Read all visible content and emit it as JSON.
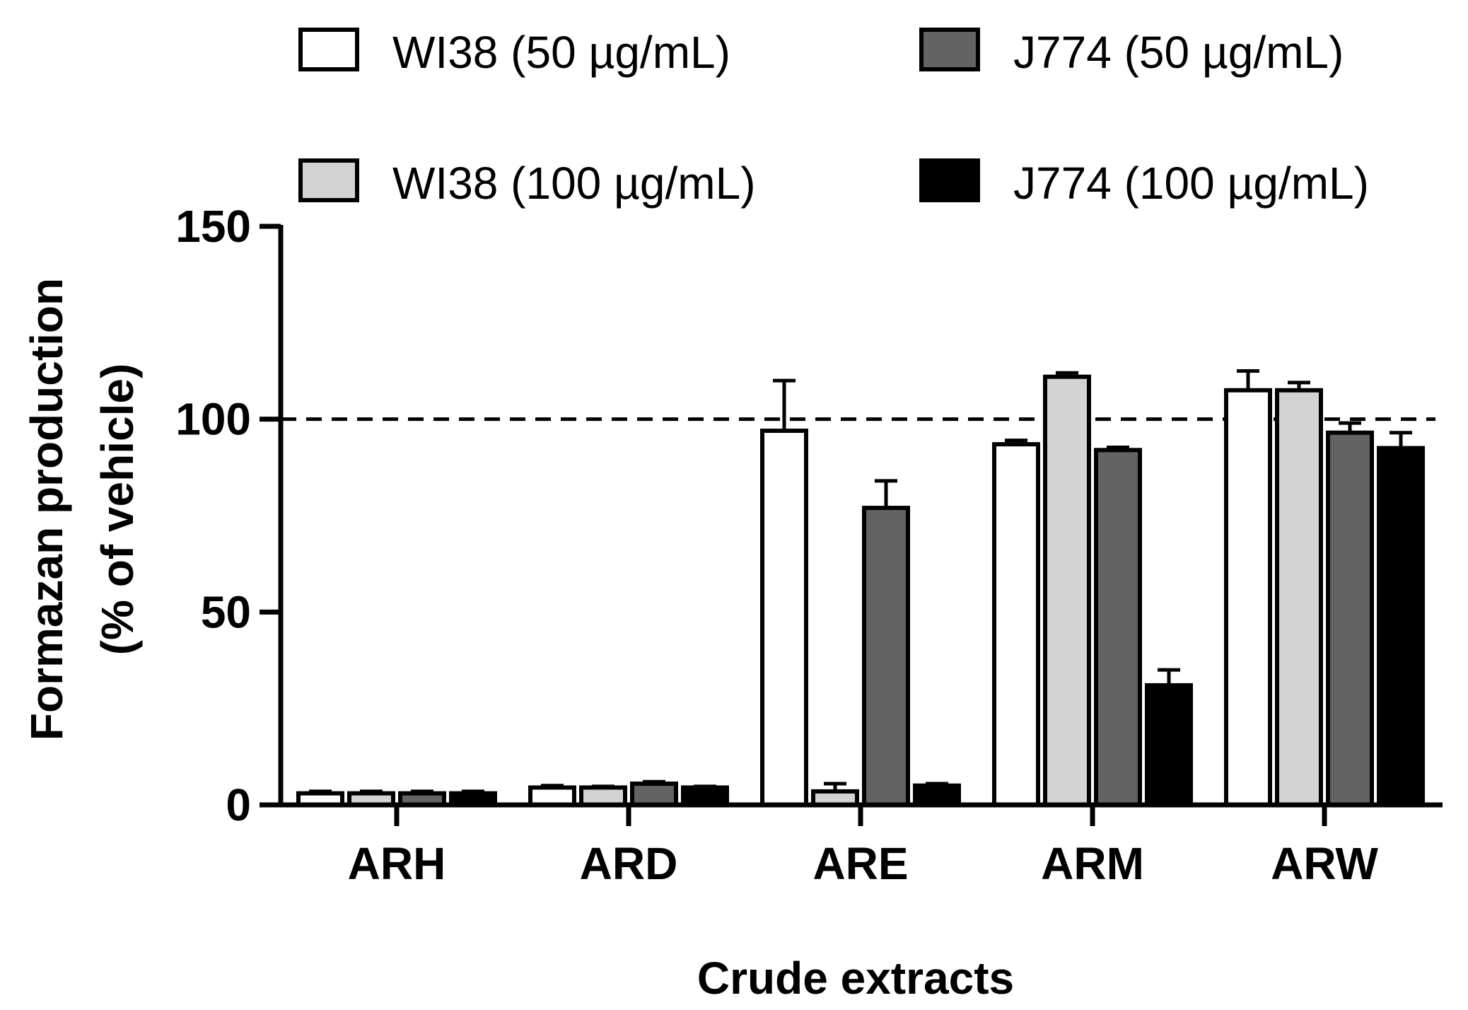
{
  "chart_data": {
    "type": "bar",
    "title": "",
    "xlabel": "Crude extracts",
    "ylabel_line1": "Formazan production",
    "ylabel_line2": "(% of vehicle)",
    "ylim": [
      0,
      150
    ],
    "yticks": [
      0,
      50,
      100,
      150
    ],
    "reference_line": 100,
    "categories": [
      "ARH",
      "ARD",
      "ARE",
      "ARM",
      "ARW"
    ],
    "series": [
      {
        "name": "WI38 (50 µg/mL)",
        "color": "#ffffff",
        "values": [
          3,
          4.5,
          97,
          93.5,
          107.5
        ],
        "errors": [
          0.5,
          0.5,
          13,
          1,
          5
        ]
      },
      {
        "name": "WI38 (100 µg/mL)",
        "color": "#d3d3d3",
        "values": [
          3,
          4.5,
          3.5,
          111,
          107.5
        ],
        "errors": [
          0.5,
          0.3,
          2,
          1,
          2
        ]
      },
      {
        "name": "J774 (50 µg/mL)",
        "color": "#636363",
        "values": [
          3,
          5.5,
          77,
          92,
          96.5
        ],
        "errors": [
          0.5,
          0.5,
          7,
          0.7,
          2.5
        ]
      },
      {
        "name": "J774 (100 µg/mL)",
        "color": "#000000",
        "values": [
          3,
          4.5,
          5,
          31,
          92.5
        ],
        "errors": [
          0.5,
          0.3,
          0.5,
          4,
          4
        ]
      }
    ],
    "legend_position": "top"
  }
}
